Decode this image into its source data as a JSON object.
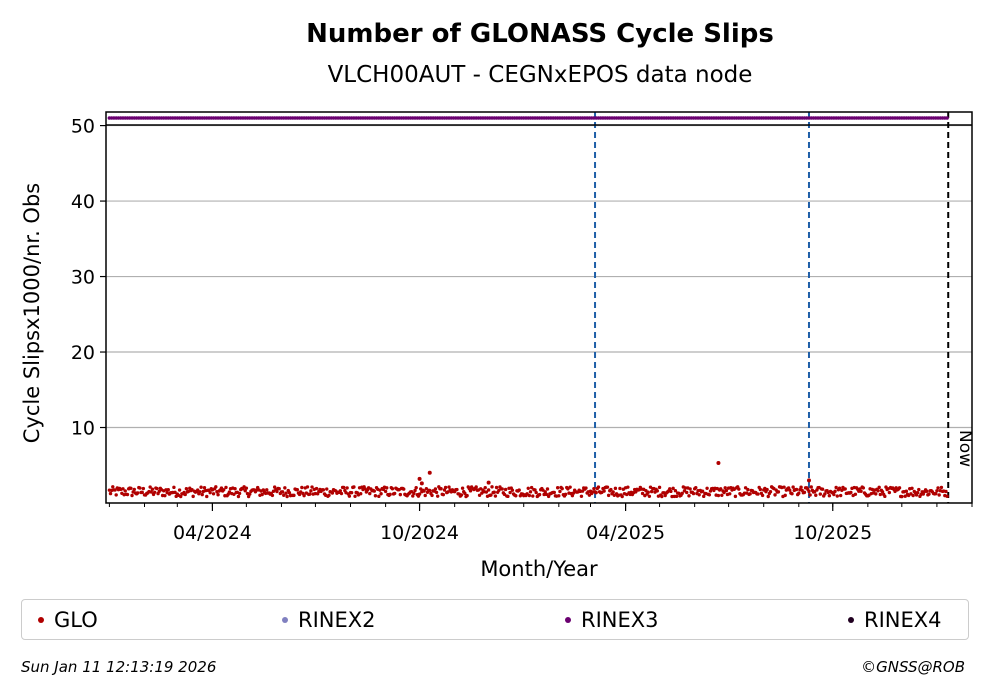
{
  "chart_data": {
    "type": "scatter",
    "title": "Number of GLONASS Cycle Slips",
    "subtitle": "VLCH00AUT - CEGNxEPOS data node",
    "xlabel": "Month/Year",
    "ylabel": "Cycle Slipsx1000/nr. Obs",
    "x_range": [
      "2023-12-29",
      "2026-02-01"
    ],
    "ylim": [
      0,
      51.8
    ],
    "y_ticks": [
      10,
      20,
      30,
      40,
      50
    ],
    "x_ticks": [
      {
        "date": "2024-04-01",
        "label": "04/2024"
      },
      {
        "date": "2024-10-01",
        "label": "10/2024"
      },
      {
        "date": "2025-04-01",
        "label": "04/2025"
      },
      {
        "date": "2025-10-01",
        "label": "10/2025"
      }
    ],
    "grid": "horizontal",
    "vertical_markers": [
      {
        "date": "2025-03-05",
        "color": "#1f5fa8",
        "style": "dashed"
      },
      {
        "date": "2025-09-10",
        "color": "#1f5fa8",
        "style": "dashed"
      },
      {
        "date": "2026-01-11",
        "color": "#000000",
        "style": "dashed",
        "label": "Now"
      }
    ],
    "legend_position": "bottom",
    "series": [
      {
        "name": "GLO",
        "color": "#b00000",
        "kind": "daily-scatter",
        "range": [
          "2024-01-01",
          "2026-01-10"
        ],
        "typical_value": 1.5,
        "spread": [
          0.4,
          2.6
        ],
        "outliers": [
          {
            "x": "2024-10-10",
            "y": 4.0
          },
          {
            "x": "2024-10-01",
            "y": 3.2
          },
          {
            "x": "2024-10-03",
            "y": 2.6
          },
          {
            "x": "2025-06-22",
            "y": 5.3
          },
          {
            "x": "2025-09-10",
            "y": 3.0
          },
          {
            "x": "2024-12-01",
            "y": 2.7
          }
        ]
      },
      {
        "name": "RINEX2",
        "color": "#8080c0",
        "values": []
      },
      {
        "name": "RINEX3",
        "color": "#6a0070",
        "kind": "constant",
        "range": [
          "2024-01-01",
          "2026-01-10"
        ],
        "value": 51
      },
      {
        "name": "RINEX4",
        "color": "#200020",
        "values": []
      }
    ]
  },
  "footer": {
    "timestamp": "Sun Jan 11 12:13:19 2026",
    "credit": "©GNSS@ROB"
  }
}
